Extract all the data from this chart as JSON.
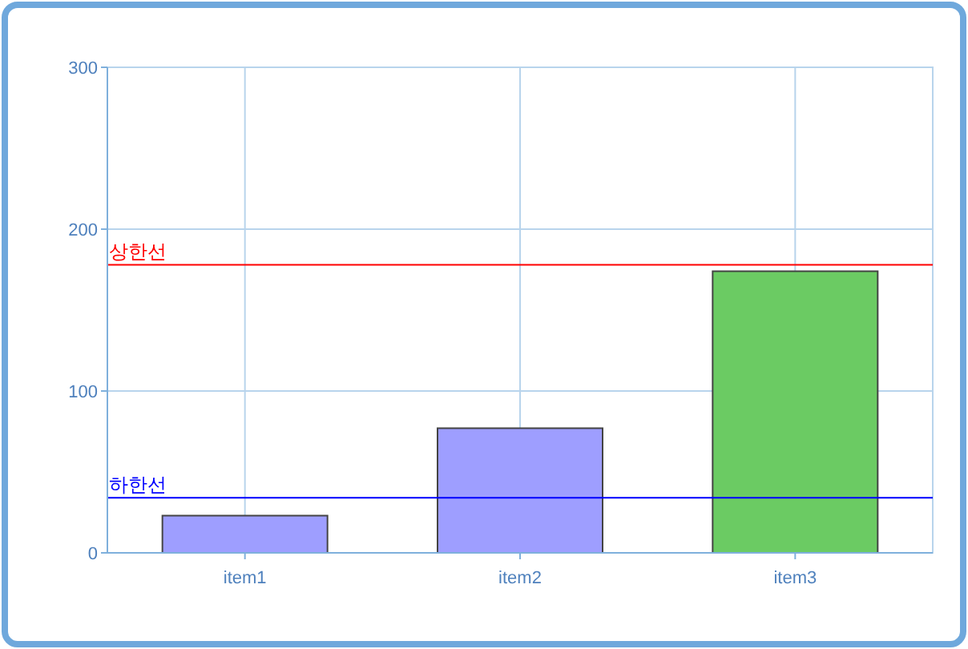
{
  "chart_data": {
    "type": "bar",
    "categories": [
      "item1",
      "item2",
      "item3"
    ],
    "values": [
      23,
      77,
      174
    ],
    "colors": [
      "#9e9eff",
      "#9e9eff",
      "#6bcb63"
    ],
    "ylim": [
      0,
      300
    ],
    "yticks": [
      0,
      100,
      200,
      300
    ],
    "grid": true,
    "ref_lines": [
      {
        "axis": "y",
        "value": 178,
        "label": "상한선",
        "color": "#ff0000"
      },
      {
        "axis": "y",
        "value": 34,
        "label": "하한선",
        "color": "#0000ff"
      }
    ]
  }
}
